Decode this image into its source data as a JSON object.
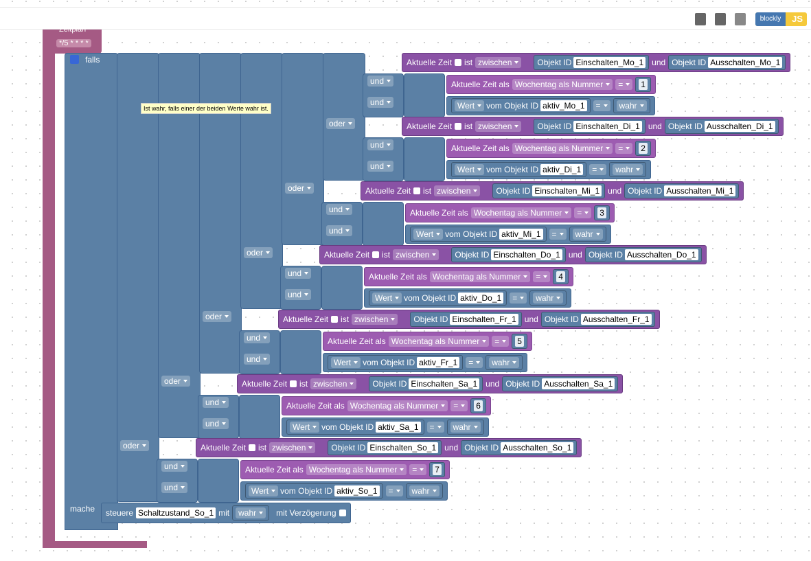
{
  "toolbar": {
    "blockly": "blockly",
    "js": "JS"
  },
  "schedule": {
    "label": "Zeitplan",
    "cron": "*/5 * * * *"
  },
  "tooltip": "Ist wahr, falls einer der beiden Werte wahr ist.",
  "if_block": {
    "falls": "falls",
    "mache": "mache"
  },
  "oder_labels": [
    "oder",
    "oder",
    "oder",
    "oder",
    "oder",
    "oder"
  ],
  "days": [
    {
      "time": {
        "label": "Aktuelle Zeit",
        "ist": "ist",
        "mode": "zwischen",
        "id1": "Objekt ID",
        "start": "Einschalten_Mo_1",
        "und": "und",
        "id2": "Objekt ID",
        "end": "Ausschalten_Mo_1"
      },
      "und_labels": [
        "und",
        "und"
      ],
      "weekday": {
        "label": "Aktuelle Zeit als",
        "type": "Wochentag als Nummer",
        "op": "=",
        "number": 1
      },
      "value": {
        "wert": "Wert",
        "vom": "vom Objekt ID",
        "id": "aktiv_Mo_1",
        "op": "=",
        "val": "wahr"
      }
    },
    {
      "time": {
        "label": "Aktuelle Zeit",
        "ist": "ist",
        "mode": "zwischen",
        "id1": "Objekt ID",
        "start": "Einschalten_Di_1",
        "und": "und",
        "id2": "Objekt ID",
        "end": "Ausschalten_Di_1"
      },
      "und_labels": [
        "und",
        "und"
      ],
      "weekday": {
        "label": "Aktuelle Zeit als",
        "type": "Wochentag als Nummer",
        "op": "=",
        "number": 2
      },
      "value": {
        "wert": "Wert",
        "vom": "vom Objekt ID",
        "id": "aktiv_Di_1",
        "op": "=",
        "val": "wahr"
      }
    },
    {
      "time": {
        "label": "Aktuelle Zeit",
        "ist": "ist",
        "mode": "zwischen",
        "id1": "Objekt ID",
        "start": "Einschalten_Mi_1",
        "und": "und",
        "id2": "Objekt ID",
        "end": "Ausschalten_Mi_1"
      },
      "und_labels": [
        "und",
        "und"
      ],
      "weekday": {
        "label": "Aktuelle Zeit als",
        "type": "Wochentag als Nummer",
        "op": "=",
        "number": 3
      },
      "value": {
        "wert": "Wert",
        "vom": "vom Objekt ID",
        "id": "aktiv_Mi_1",
        "op": "=",
        "val": "wahr"
      }
    },
    {
      "time": {
        "label": "Aktuelle Zeit",
        "ist": "ist",
        "mode": "zwischen",
        "id1": "Objekt ID",
        "start": "Einschalten_Do_1",
        "und": "und",
        "id2": "Objekt ID",
        "end": "Ausschalten_Do_1"
      },
      "und_labels": [
        "und",
        "und"
      ],
      "weekday": {
        "label": "Aktuelle Zeit als",
        "type": "Wochentag als Nummer",
        "op": "=",
        "number": 4
      },
      "value": {
        "wert": "Wert",
        "vom": "vom Objekt ID",
        "id": "aktiv_Do_1",
        "op": "=",
        "val": "wahr"
      }
    },
    {
      "time": {
        "label": "Aktuelle Zeit",
        "ist": "ist",
        "mode": "zwischen",
        "id1": "Objekt ID",
        "start": "Einschalten_Fr_1",
        "und": "und",
        "id2": "Objekt ID",
        "end": "Ausschalten_Fr_1"
      },
      "und_labels": [
        "und",
        "und"
      ],
      "weekday": {
        "label": "Aktuelle Zeit als",
        "type": "Wochentag als Nummer",
        "op": "=",
        "number": 5
      },
      "value": {
        "wert": "Wert",
        "vom": "vom Objekt ID",
        "id": "aktiv_Fr_1",
        "op": "=",
        "val": "wahr"
      }
    },
    {
      "time": {
        "label": "Aktuelle Zeit",
        "ist": "ist",
        "mode": "zwischen",
        "id1": "Objekt ID",
        "start": "Einschalten_Sa_1",
        "und": "und",
        "id2": "Objekt ID",
        "end": "Ausschalten_Sa_1"
      },
      "und_labels": [
        "und",
        "und"
      ],
      "weekday": {
        "label": "Aktuelle Zeit als",
        "type": "Wochentag als Nummer",
        "op": "=",
        "number": 6
      },
      "value": {
        "wert": "Wert",
        "vom": "vom Objekt ID",
        "id": "aktiv_Sa_1",
        "op": "=",
        "val": "wahr"
      }
    },
    {
      "time": {
        "label": "Aktuelle Zeit",
        "ist": "ist",
        "mode": "zwischen",
        "id1": "Objekt ID",
        "start": "Einschalten_So_1",
        "und": "und",
        "id2": "Objekt ID",
        "end": "Ausschalten_So_1"
      },
      "und_labels": [
        "und",
        "und"
      ],
      "weekday": {
        "label": "Aktuelle Zeit als",
        "type": "Wochentag als Nummer",
        "op": "=",
        "number": 7
      },
      "value": {
        "wert": "Wert",
        "vom": "vom Objekt ID",
        "id": "aktiv_So_1",
        "op": "=",
        "val": "wahr"
      }
    }
  ],
  "action": {
    "steuere": "steuere",
    "target": "Schaltzustand_So_1",
    "mit": "mit",
    "val": "wahr",
    "delay": "mit Verzögerung"
  }
}
